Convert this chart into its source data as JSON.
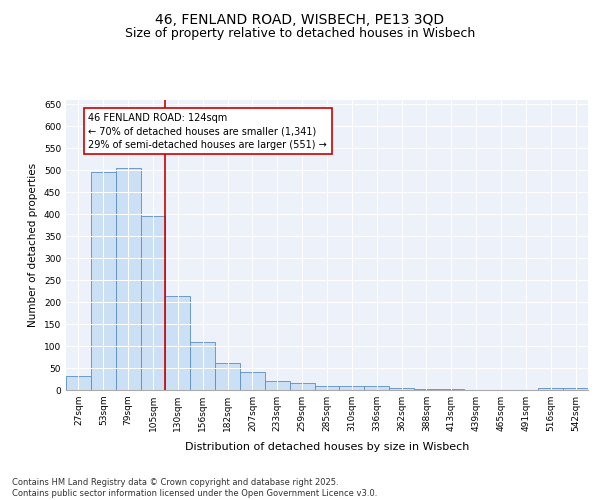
{
  "title1": "46, FENLAND ROAD, WISBECH, PE13 3QD",
  "title2": "Size of property relative to detached houses in Wisbech",
  "xlabel": "Distribution of detached houses by size in Wisbech",
  "ylabel": "Number of detached properties",
  "categories": [
    "27sqm",
    "53sqm",
    "79sqm",
    "105sqm",
    "130sqm",
    "156sqm",
    "182sqm",
    "207sqm",
    "233sqm",
    "259sqm",
    "285sqm",
    "310sqm",
    "336sqm",
    "362sqm",
    "388sqm",
    "413sqm",
    "439sqm",
    "465sqm",
    "491sqm",
    "516sqm",
    "542sqm"
  ],
  "values": [
    32,
    497,
    505,
    395,
    215,
    110,
    62,
    40,
    20,
    15,
    10,
    9,
    9,
    5,
    3,
    3,
    1,
    1,
    1,
    5,
    5
  ],
  "bar_color": "#cce0f5",
  "bar_edge_color": "#5b8ec4",
  "vline_x": 4.0,
  "vline_color": "#cc0000",
  "annotation_text": "46 FENLAND ROAD: 124sqm\n← 70% of detached houses are smaller (1,341)\n29% of semi-detached houses are larger (551) →",
  "annotation_box_color": "#ffffff",
  "annotation_box_edge": "#cc0000",
  "ylim": [
    0,
    660
  ],
  "yticks": [
    0,
    50,
    100,
    150,
    200,
    250,
    300,
    350,
    400,
    450,
    500,
    550,
    600,
    650
  ],
  "bg_color": "#edf2fa",
  "footer": "Contains HM Land Registry data © Crown copyright and database right 2025.\nContains public sector information licensed under the Open Government Licence v3.0.",
  "title_fontsize": 10,
  "subtitle_fontsize": 9,
  "axis_label_fontsize": 7.5,
  "tick_fontsize": 6.5,
  "annot_fontsize": 7,
  "footer_fontsize": 6
}
